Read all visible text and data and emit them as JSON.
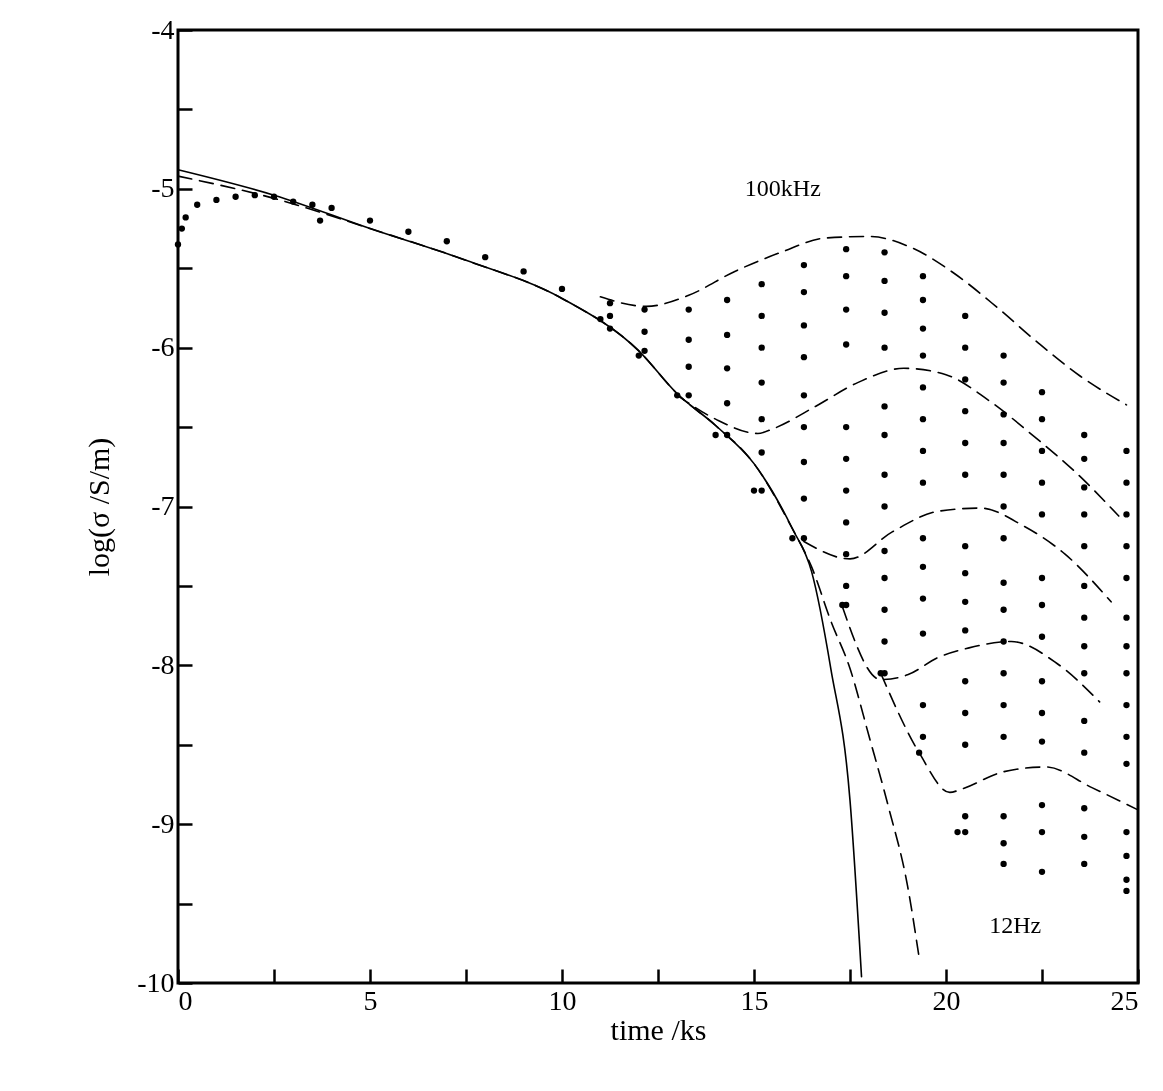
{
  "chart_data": {
    "type": "line",
    "xlabel": "time /ks",
    "ylabel": "log(σ /S/m)",
    "xlim": [
      0,
      25
    ],
    "ylim": [
      -10,
      -4
    ],
    "xticks": [
      0,
      {
        "value": 2.5,
        "label": null
      },
      5,
      {
        "value": 7.5,
        "label": null
      },
      10,
      {
        "value": 12.5,
        "label": null
      },
      15,
      {
        "value": 17.5,
        "label": null
      },
      20,
      {
        "value": 22.5,
        "label": null
      },
      25
    ],
    "yticks": [
      -10,
      {
        "value": -9.5,
        "label": null
      },
      -9,
      {
        "value": -8.5,
        "label": null
      },
      -8,
      {
        "value": -7.5,
        "label": null
      },
      -7,
      {
        "value": -6.5,
        "label": null
      },
      -6,
      {
        "value": -5.5,
        "label": null
      },
      -5,
      {
        "value": -4.5,
        "label": null
      },
      -4
    ],
    "grid": false,
    "annotations": [
      "100kHz",
      "12Hz"
    ],
    "series": [
      {
        "line_style": "solid",
        "color": "#000000",
        "x": [
          0,
          2.5,
          5,
          7.5,
          10,
          12,
          13,
          14,
          15,
          16,
          16.5,
          17,
          17.5,
          17.8
        ],
        "values": [
          -4.88,
          -5.04,
          -5.25,
          -5.45,
          -5.69,
          -6.02,
          -6.29,
          -6.49,
          -6.73,
          -7.14,
          -7.41,
          -8.02,
          -8.85,
          -9.96
        ]
      },
      {
        "line_style": "dashed",
        "color": "#000000",
        "x": [
          0,
          2.5,
          5,
          7.5,
          10,
          12,
          13,
          14,
          15,
          16,
          16.5,
          17,
          17.5,
          18,
          18.5,
          19,
          19.3
        ],
        "values": [
          -4.92,
          -5.06,
          -5.25,
          -5.45,
          -5.69,
          -6.02,
          -6.29,
          -6.49,
          -6.73,
          -7.14,
          -7.38,
          -7.72,
          -8.02,
          -8.45,
          -8.89,
          -9.39,
          -9.84
        ]
      },
      {
        "line_style": "dashed",
        "color": "#000000",
        "x": [
          11,
          12.2,
          13.3,
          14.5,
          15.7,
          16.85,
          18,
          19.1,
          20.2,
          21.3,
          22.4,
          23.5,
          24.7
        ],
        "values": [
          -5.68,
          -5.74,
          -5.67,
          -5.52,
          -5.4,
          -5.31,
          -5.3,
          -5.37,
          -5.53,
          -5.74,
          -5.97,
          -6.18,
          -6.36
        ]
      },
      {
        "line_style": "dashed",
        "color": "#000000",
        "x": [
          13,
          14,
          15.1,
          15.5,
          16.6,
          17.7,
          18.9,
          20,
          21.1,
          22.3,
          23.4,
          24.5
        ],
        "values": [
          -6.3,
          -6.45,
          -6.54,
          -6.51,
          -6.37,
          -6.22,
          -6.13,
          -6.17,
          -6.33,
          -6.56,
          -6.79,
          -7.06
        ]
      },
      {
        "line_style": "dashed",
        "color": "#000000",
        "x": [
          16.3,
          17.5,
          18.6,
          19.8,
          20.9,
          22,
          23.1,
          24.3
        ],
        "values": [
          -7.22,
          -7.33,
          -7.16,
          -7.03,
          -7.01,
          -7.12,
          -7.3,
          -7.6
        ]
      },
      {
        "line_style": "dashed",
        "color": "#000000",
        "x": [
          17.3,
          18.3,
          19,
          19.8,
          20.6,
          21.7,
          22.9,
          24
        ],
        "values": [
          -7.63,
          -8.09,
          -8.06,
          -7.95,
          -7.89,
          -7.85,
          -7.99,
          -8.23
        ]
      },
      {
        "line_style": "dashed",
        "color": "#000000",
        "x": [
          18.3,
          19.3,
          20.1,
          20.4,
          21.5,
          22.6,
          23.8,
          25
        ],
        "values": [
          -8.05,
          -8.55,
          -8.8,
          -8.78,
          -8.67,
          -8.64,
          -8.77,
          -8.91
        ]
      },
      {
        "type": "scatter",
        "marker": "circle",
        "color": "#000000",
        "x": [
          0,
          0.1,
          0.2,
          0.5,
          1,
          1.5,
          2,
          2.5,
          3,
          3.5,
          3.7,
          4,
          5,
          6,
          7,
          8,
          9,
          10,
          11,
          12,
          13,
          14,
          15,
          16,
          17.3,
          18.3,
          19.3,
          20.3,
          11.25,
          11.25,
          11.25,
          12.15,
          12.15,
          12.15,
          13.3,
          13.3,
          13.3,
          13.3,
          14.3,
          14.3,
          14.3,
          14.3,
          14.3,
          15.2,
          15.2,
          15.2,
          15.2,
          15.2,
          15.2,
          15.2,
          16.3,
          16.3,
          16.3,
          16.3,
          16.3,
          16.3,
          16.3,
          16.3,
          16.3,
          17.4,
          17.4,
          17.4,
          17.4,
          17.4,
          17.4,
          17.4,
          17.4,
          17.4,
          17.4,
          17.4,
          18.4,
          18.4,
          18.4,
          18.4,
          18.4,
          18.4,
          18.4,
          18.4,
          18.4,
          18.4,
          18.4,
          18.4,
          18.4,
          19.4,
          19.4,
          19.4,
          19.4,
          19.4,
          19.4,
          19.4,
          19.4,
          19.4,
          19.4,
          19.4,
          19.4,
          19.4,
          19.4,
          20.5,
          20.5,
          20.5,
          20.5,
          20.5,
          20.5,
          20.5,
          20.5,
          20.5,
          20.5,
          20.5,
          20.5,
          20.5,
          20.5,
          20.5,
          21.5,
          21.5,
          21.5,
          21.5,
          21.5,
          21.5,
          21.5,
          21.5,
          21.5,
          21.5,
          21.5,
          21.5,
          21.5,
          21.5,
          21.5,
          21.5,
          22.5,
          22.5,
          22.5,
          22.5,
          22.5,
          22.5,
          22.5,
          22.5,
          22.5,
          22.5,
          22.5,
          22.5,
          22.5,
          22.5,
          23.6,
          23.6,
          23.6,
          23.6,
          23.6,
          23.6,
          23.6,
          23.6,
          23.6,
          23.6,
          23.6,
          23.6,
          23.6,
          23.6,
          24.7,
          24.7,
          24.7,
          24.7,
          24.7,
          24.7,
          24.7,
          24.7,
          24.7,
          24.7,
          24.7,
          24.7,
          24.7,
          24.7,
          24.7
        ],
        "values": [
          -5.35,
          -5.25,
          -5.18,
          -5.1,
          -5.07,
          -5.05,
          -5.04,
          -5.05,
          -5.08,
          -5.1,
          -5.2,
          -5.12,
          -5.2,
          -5.27,
          -5.33,
          -5.43,
          -5.52,
          -5.63,
          -5.82,
          -6.05,
          -6.3,
          -6.55,
          -6.9,
          -7.2,
          -7.62,
          -8.05,
          -8.55,
          -9.05,
          -5.72,
          -5.8,
          -5.88,
          -5.76,
          -5.9,
          -6.02,
          -5.76,
          -5.95,
          -6.12,
          -6.3,
          -5.7,
          -5.92,
          -6.13,
          -6.35,
          -6.55,
          -5.6,
          -5.8,
          -6.0,
          -6.22,
          -6.45,
          -6.66,
          -6.9,
          -5.48,
          -5.65,
          -5.86,
          -6.06,
          -6.3,
          -6.5,
          -6.72,
          -6.95,
          -7.2,
          -5.38,
          -5.55,
          -5.76,
          -5.98,
          -6.5,
          -6.7,
          -6.9,
          -7.1,
          -7.3,
          -7.5,
          -7.62,
          -5.4,
          -5.58,
          -5.78,
          -6.0,
          -6.37,
          -6.55,
          -6.8,
          -7.0,
          -7.28,
          -7.45,
          -7.65,
          -7.85,
          -8.05,
          -5.55,
          -5.7,
          -5.88,
          -6.05,
          -6.25,
          -6.45,
          -6.65,
          -6.85,
          -7.2,
          -7.38,
          -7.58,
          -7.8,
          -8.25,
          -8.45,
          -5.8,
          -6.0,
          -6.2,
          -6.4,
          -6.6,
          -6.8,
          -7.25,
          -7.42,
          -7.6,
          -7.78,
          -8.1,
          -8.3,
          -8.5,
          -8.95,
          -9.05,
          -6.05,
          -6.22,
          -6.42,
          -6.6,
          -6.8,
          -7.0,
          -7.2,
          -7.48,
          -7.65,
          -7.85,
          -8.05,
          -8.25,
          -8.45,
          -8.95,
          -9.12,
          -9.25,
          -6.28,
          -6.45,
          -6.65,
          -6.85,
          -7.05,
          -7.45,
          -7.62,
          -7.82,
          -8.1,
          -8.3,
          -8.48,
          -8.88,
          -9.05,
          -9.3,
          -6.55,
          -6.7,
          -6.88,
          -7.05,
          -7.25,
          -7.5,
          -7.7,
          -7.88,
          -8.05,
          -8.35,
          -8.55,
          -8.9,
          -9.08,
          -9.25,
          -6.65,
          -6.85,
          -7.05,
          -7.25,
          -7.45,
          -7.7,
          -7.88,
          -8.05,
          -8.25,
          -8.45,
          -8.62,
          -9.05,
          -9.2,
          -9.35,
          -9.42
        ]
      }
    ]
  }
}
